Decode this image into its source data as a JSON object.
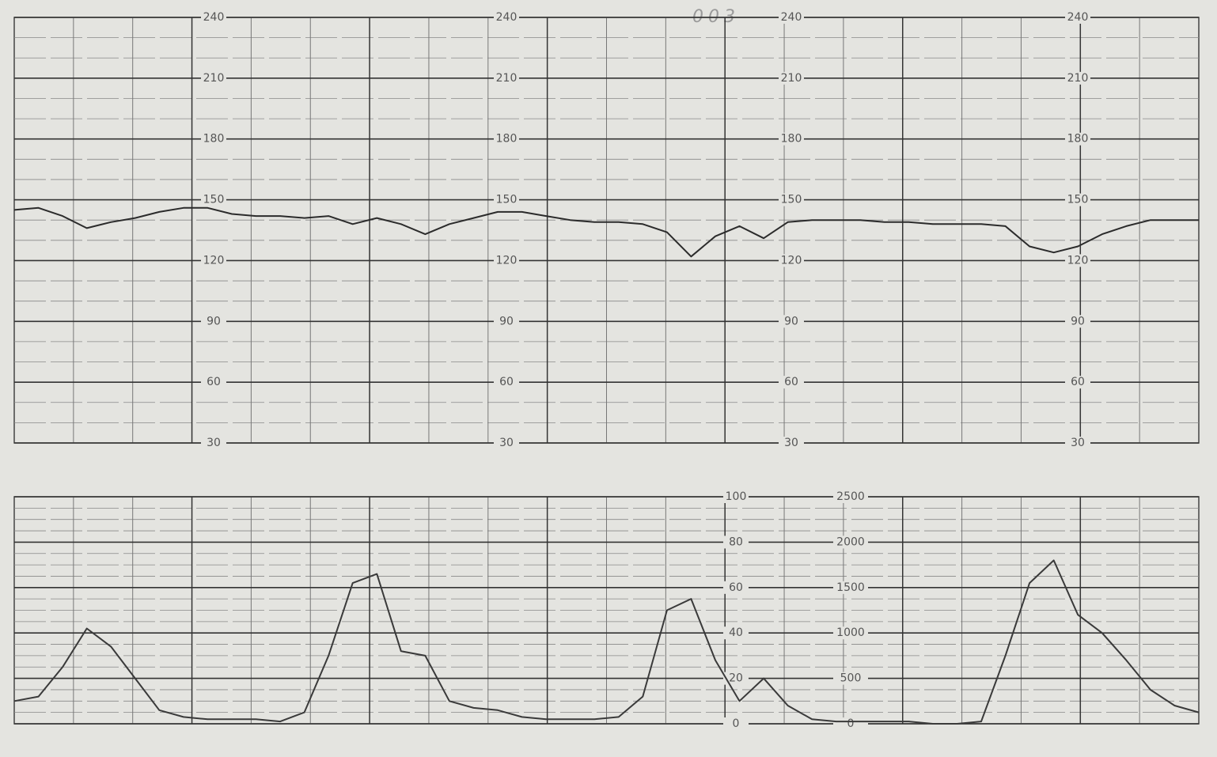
{
  "chart_data": [
    {
      "type": "line",
      "title": "003",
      "color": "#2b2b2b",
      "values": [
        145,
        146,
        142,
        136,
        139,
        141,
        144,
        146,
        146,
        143,
        142,
        142,
        141,
        142,
        138,
        141,
        138,
        133,
        138,
        141,
        144,
        144,
        142,
        140,
        139,
        139,
        138,
        134,
        122,
        132,
        137,
        131,
        139,
        140,
        140,
        140,
        139,
        139,
        138,
        138,
        138,
        137,
        127,
        124,
        127,
        133,
        137,
        140,
        140,
        140
      ],
      "ylim": [
        30,
        240
      ],
      "yticks": [
        30,
        60,
        90,
        120,
        150,
        180,
        210,
        240
      ],
      "grid": true
    },
    {
      "type": "line",
      "color": "#3a3a3a",
      "values": [
        10,
        12,
        25,
        42,
        34,
        20,
        6,
        3,
        2,
        2,
        2,
        1,
        5,
        30,
        62,
        66,
        32,
        30,
        10,
        7,
        6,
        3,
        2,
        2,
        2,
        3,
        12,
        50,
        55,
        28,
        10,
        20,
        8,
        2,
        1,
        1,
        1,
        1,
        0,
        0,
        1,
        30,
        62,
        72,
        48,
        40,
        28,
        15,
        8,
        5
      ],
      "ylim": [
        0,
        100
      ],
      "yticks": [
        0,
        20,
        40,
        60,
        80,
        100
      ],
      "y2lim": [
        0,
        2500
      ],
      "y2ticks": [
        0,
        500,
        1000,
        1500,
        2000,
        2500
      ],
      "grid": true
    }
  ]
}
